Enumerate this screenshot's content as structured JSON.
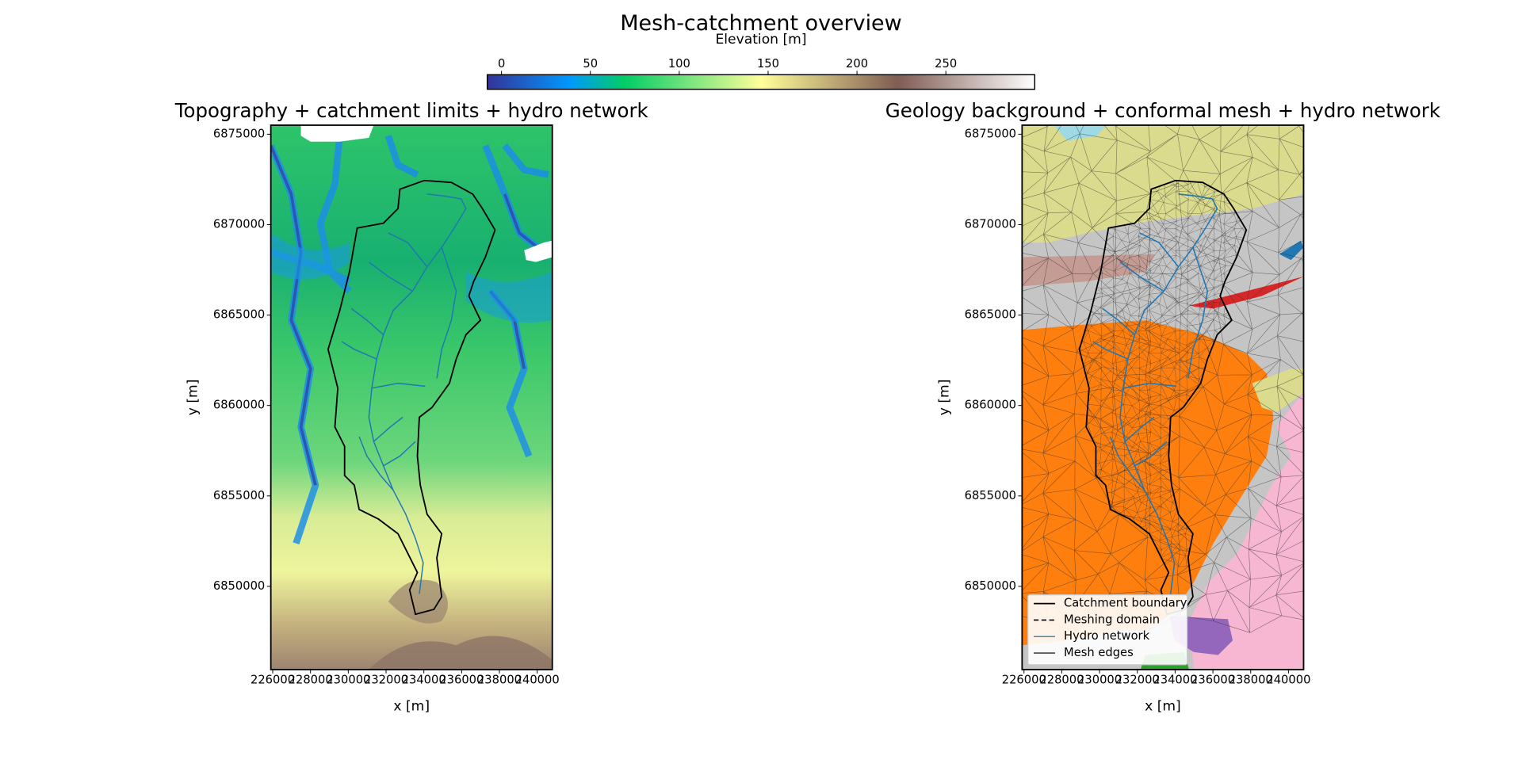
{
  "title": "Mesh-catchment overview",
  "colorbar": {
    "label": "Elevation [m]",
    "colormap": "terrain",
    "lim": [
      -8,
      300
    ],
    "ticks": [
      0,
      50,
      100,
      150,
      200,
      250
    ]
  },
  "chart_data": [
    {
      "type": "map",
      "title": "Topography + catchment limits + hydro network",
      "xlabel": "x [m]",
      "ylabel": "y [m]",
      "xlim": [
        225900,
        240800
      ],
      "ylim": [
        6845400,
        6875500
      ],
      "xticks": [
        226000,
        228000,
        230000,
        232000,
        234000,
        236000,
        238000,
        240000
      ],
      "yticks": [
        6850000,
        6855000,
        6860000,
        6865000,
        6870000,
        6875000
      ]
    },
    {
      "type": "map",
      "title": "Geology background + conformal mesh + hydro network",
      "xlabel": "x [m]",
      "ylabel": "y [m]",
      "xlim": [
        225900,
        240800
      ],
      "ylim": [
        6845400,
        6875500
      ],
      "xticks": [
        226000,
        228000,
        230000,
        232000,
        234000,
        236000,
        238000,
        240000
      ],
      "yticks": [
        6850000,
        6855000,
        6860000,
        6865000,
        6870000,
        6875000
      ],
      "legend": "lower left",
      "series": [
        {
          "name": "Catchment boundary",
          "color": "#000000",
          "linestyle": "solid"
        },
        {
          "name": "Meshing domain",
          "color": "#000000",
          "linestyle": "dashed"
        },
        {
          "name": "Hydro network",
          "color": "#1f77b4",
          "linestyle": "solid"
        },
        {
          "name": "Mesh edges",
          "color": "#444444",
          "linestyle": "solid"
        }
      ]
    }
  ]
}
